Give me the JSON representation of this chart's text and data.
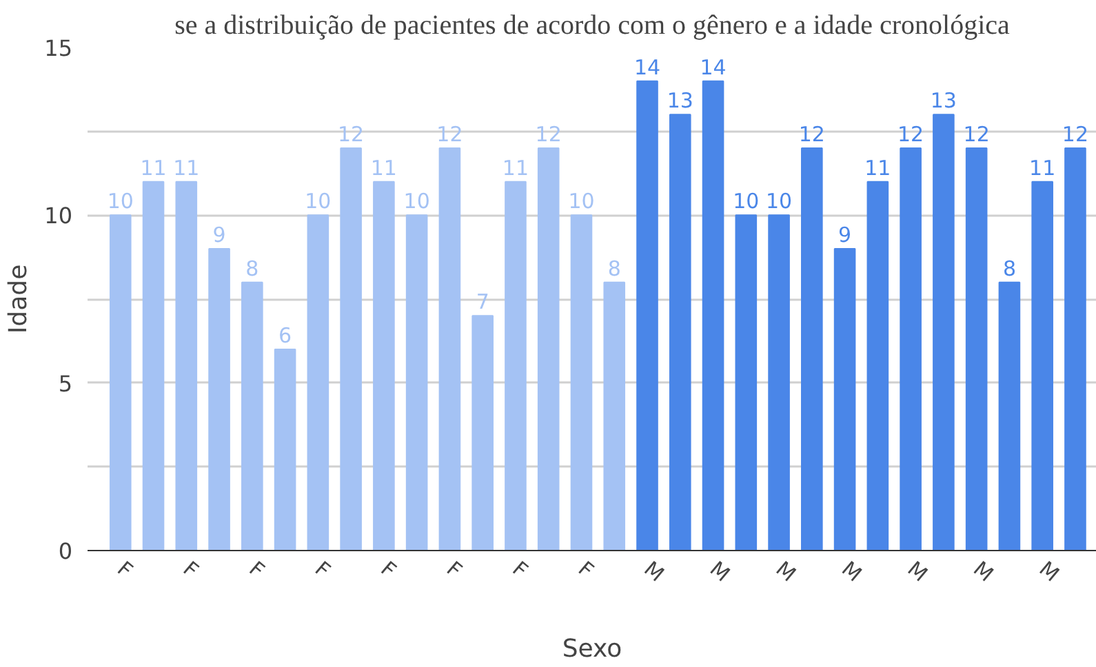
{
  "chart_data": {
    "type": "bar",
    "title": "se a distribuição de pacientes de acordo com o gênero e a idade cronológica",
    "xlabel": "Sexo",
    "ylabel": "Idade",
    "categories": [
      "F",
      null,
      "F",
      null,
      "F",
      null,
      "F",
      null,
      "F",
      null,
      "F",
      null,
      "F",
      null,
      "F",
      null,
      "M",
      null,
      "M",
      null,
      "M",
      null,
      "M",
      null,
      "M",
      null,
      "M",
      null,
      "M",
      null
    ],
    "values": [
      10,
      11,
      11,
      9,
      8,
      6,
      10,
      12,
      11,
      10,
      12,
      7,
      11,
      12,
      10,
      8,
      14,
      13,
      14,
      10,
      10,
      12,
      9,
      11,
      12,
      13,
      12,
      8,
      11,
      12
    ],
    "colors": [
      "#a4c2f4",
      "#a4c2f4",
      "#a4c2f4",
      "#a4c2f4",
      "#a4c2f4",
      "#a4c2f4",
      "#a4c2f4",
      "#a4c2f4",
      "#a4c2f4",
      "#a4c2f4",
      "#a4c2f4",
      "#a4c2f4",
      "#a4c2f4",
      "#a4c2f4",
      "#a4c2f4",
      "#a4c2f4",
      "#4a86e8",
      "#4a86e8",
      "#4a86e8",
      "#4a86e8",
      "#4a86e8",
      "#4a86e8",
      "#4a86e8",
      "#4a86e8",
      "#4a86e8",
      "#4a86e8",
      "#4a86e8",
      "#4a86e8",
      "#4a86e8",
      "#4a86e8"
    ],
    "ylim": [
      0,
      15
    ],
    "yticks": [
      0,
      {
        "value": 2.5,
        "label": null
      },
      5,
      {
        "value": 7.5,
        "label": null
      },
      10,
      {
        "value": 12.5,
        "label": null
      },
      15
    ],
    "grid": "y",
    "data_labels": true
  }
}
